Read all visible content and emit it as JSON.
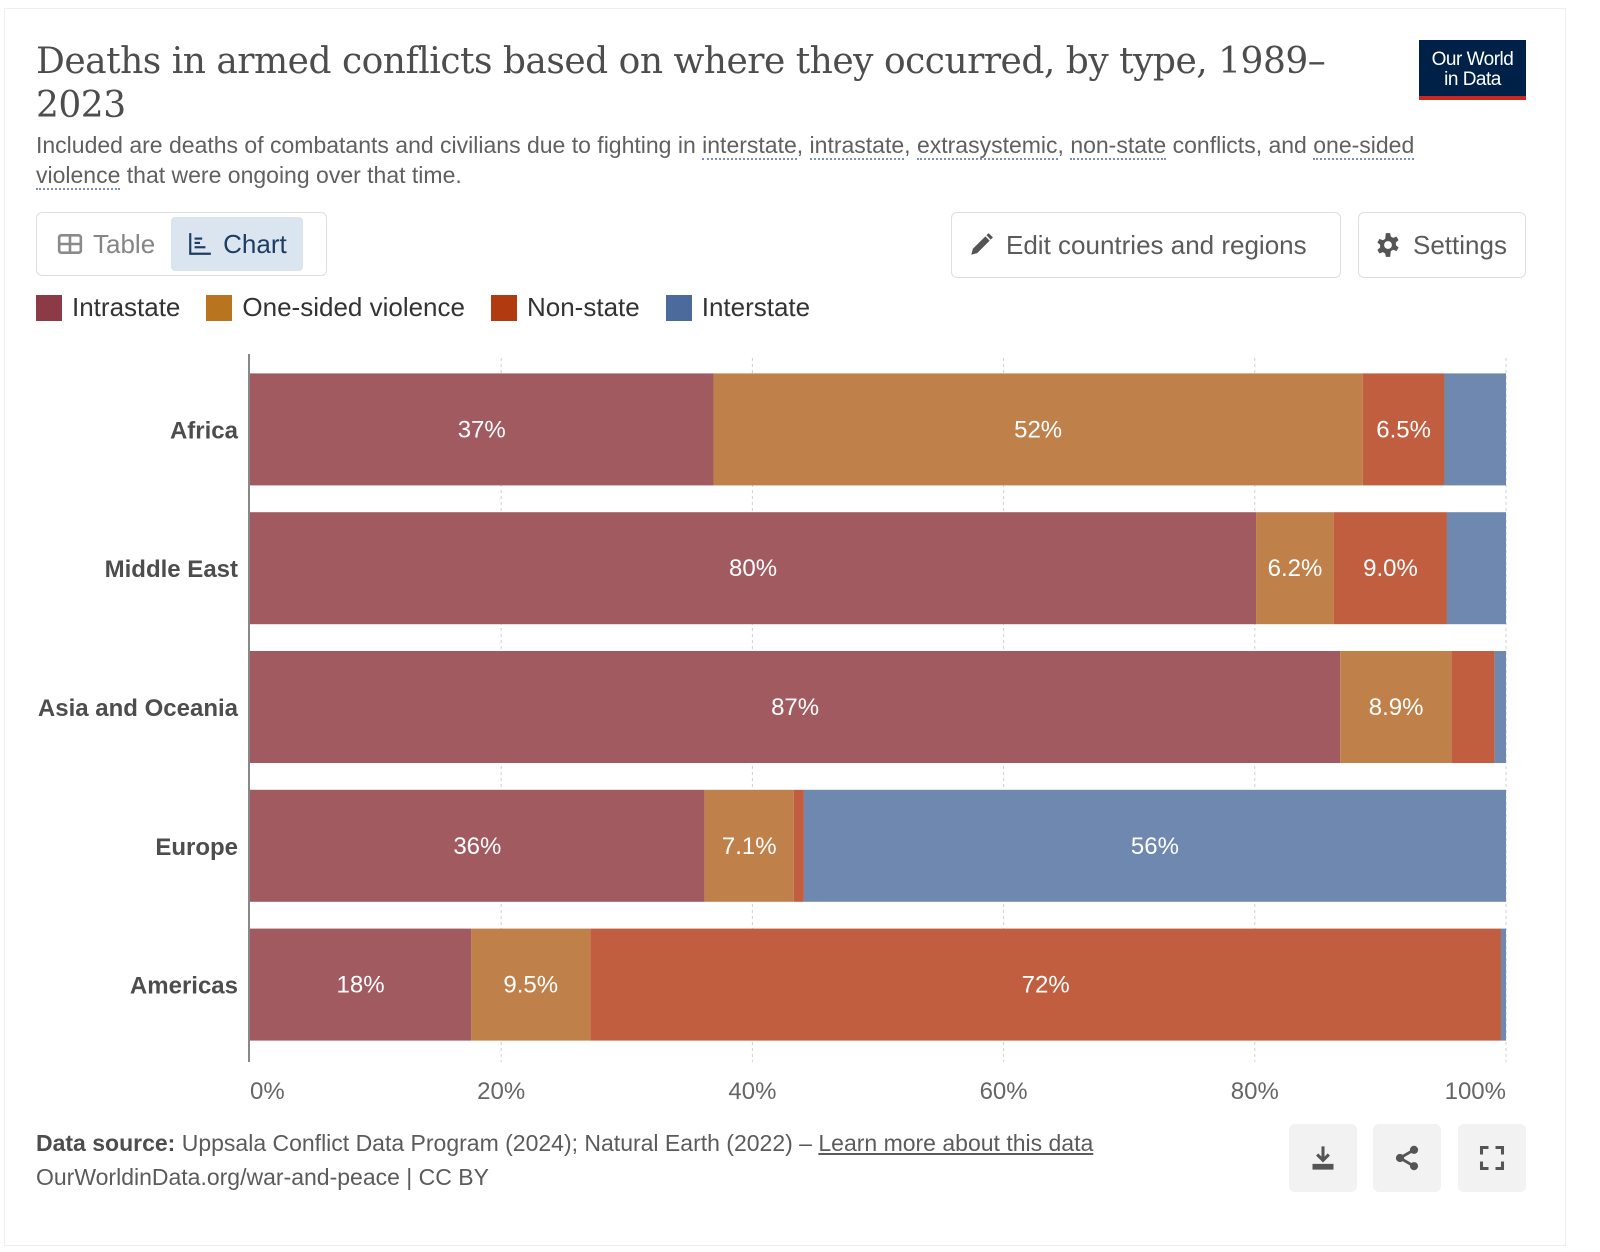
{
  "header": {
    "title": "Deaths in armed conflicts based on where they occurred, by type, 1989–2023",
    "subtitle_parts": [
      {
        "text": "Included are deaths of combatants and civilians due to fighting in ",
        "term": false
      },
      {
        "text": "interstate",
        "term": true
      },
      {
        "text": ", ",
        "term": false
      },
      {
        "text": "intrastate",
        "term": true
      },
      {
        "text": ", ",
        "term": false
      },
      {
        "text": "extrasystemic",
        "term": true
      },
      {
        "text": ", ",
        "term": false
      },
      {
        "text": "non-state",
        "term": true
      },
      {
        "text": " conflicts, and ",
        "term": false
      },
      {
        "text": "one-sided violence",
        "term": true
      },
      {
        "text": " that were ongoing over that time.",
        "term": false
      }
    ],
    "logo_line1": "Our World",
    "logo_line2": "in Data"
  },
  "controls": {
    "tabs": [
      {
        "label": "Table",
        "icon": "table-icon",
        "active": false
      },
      {
        "label": "Chart",
        "icon": "chart-icon",
        "active": true
      }
    ],
    "edit_label": "Edit countries and regions",
    "settings_label": "Settings"
  },
  "colors": {
    "Intrastate": "#a15a60",
    "One-sided violence": "#c0804a",
    "Non-state": "#c15e40",
    "Interstate": "#6e88b0",
    "legend_Intrastate": "#8c3a45",
    "legend_One-sided violence": "#b8741f",
    "legend_Non-state": "#b23a10",
    "legend_Interstate": "#4c6a9c"
  },
  "chart_data": {
    "type": "bar",
    "orientation": "horizontal",
    "stacked": true,
    "relative": true,
    "title": "Deaths in armed conflicts based on where they occurred, by type, 1989–2023",
    "xlabel": "",
    "ylabel": "",
    "xlim": [
      0,
      100
    ],
    "x_ticks": [
      "0%",
      "20%",
      "40%",
      "60%",
      "80%",
      "100%"
    ],
    "x_tick_values": [
      0,
      20,
      40,
      60,
      80,
      100
    ],
    "grid": true,
    "legend_position": "top-left",
    "categories": [
      "Africa",
      "Middle East",
      "Asia and Oceania",
      "Europe",
      "Americas"
    ],
    "series": [
      {
        "name": "Intrastate",
        "values": [
          36.9,
          80.1,
          86.8,
          36.2,
          17.6
        ],
        "labels": [
          "37%",
          "80%",
          "87%",
          "36%",
          "18%"
        ]
      },
      {
        "name": "One-sided violence",
        "values": [
          51.7,
          6.2,
          8.9,
          7.1,
          9.5
        ],
        "labels": [
          "52%",
          "6.2%",
          "8.9%",
          "7.1%",
          "9.5%"
        ]
      },
      {
        "name": "Non-state",
        "values": [
          6.5,
          9.0,
          3.4,
          0.8,
          72.5
        ],
        "labels": [
          "6.5%",
          "9.0%",
          "",
          "",
          "72%"
        ]
      },
      {
        "name": "Interstate",
        "values": [
          4.9,
          4.7,
          0.9,
          55.9,
          0.4
        ],
        "labels": [
          "",
          "",
          "",
          "56%",
          ""
        ]
      }
    ]
  },
  "footer": {
    "source_label": "Data source:",
    "source_text": " Uppsala Conflict Data Program (2024); Natural Earth (2022) – ",
    "learn_more": "Learn more about this data",
    "url_text": "OurWorldinData.org/war-and-peace | CC BY"
  },
  "actions": {
    "download": "download-icon",
    "share": "share-icon",
    "fullscreen": "fullscreen-icon"
  }
}
